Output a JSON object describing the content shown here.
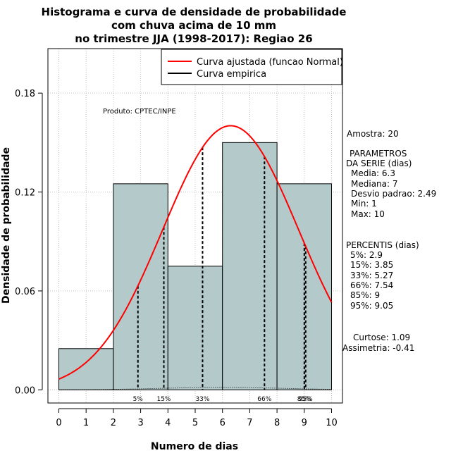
{
  "chart_data": {
    "type": "bar",
    "title": [
      "Histograma e curva de densidade de probabilidade",
      "com chuva acima de 10 mm",
      "no trimestre JJA (1998-2017): Regiao 26"
    ],
    "xlabel": "Numero de dias",
    "ylabel": "Densidade de probabilidade",
    "xlim": [
      -0.4,
      10.4
    ],
    "ylim": [
      -0.008,
      0.207
    ],
    "x_ticks": [
      "0",
      "1",
      "2",
      "3",
      "4",
      "5",
      "6",
      "7",
      "8",
      "9",
      "10"
    ],
    "y_ticks": [
      "0.00",
      "0.06",
      "0.12",
      "0.18"
    ],
    "grid": true,
    "bins": [
      {
        "start": 0,
        "end": 2,
        "density": 0.025
      },
      {
        "start": 2,
        "end": 4,
        "density": 0.125
      },
      {
        "start": 4,
        "end": 6,
        "density": 0.075
      },
      {
        "start": 6,
        "end": 8,
        "density": 0.15
      },
      {
        "start": 8,
        "end": 10,
        "density": 0.125
      }
    ],
    "bar_color": "#b4caca",
    "series": [
      {
        "name": "Curva ajustada (funcao Normal)",
        "color": "#ff0000",
        "mean": 6.3,
        "sd": 2.49
      },
      {
        "name": "Curva empirica",
        "color": "#000000"
      }
    ],
    "legend_position": "top-right",
    "credit": "Produto: CPTEC/INPE",
    "percentiles": [
      {
        "label": "5%",
        "value": 2.9
      },
      {
        "label": "15%",
        "value": 3.85
      },
      {
        "label": "33%",
        "value": 5.27
      },
      {
        "label": "66%",
        "value": 7.54
      },
      {
        "label": "85%",
        "value": 9
      },
      {
        "label": "95%",
        "value": 9.05
      }
    ],
    "stats": {
      "amostra": "Amostra: 20",
      "params_title": [
        "PARAMETROS",
        "DA SERIE (dias)"
      ],
      "params": [
        "Media: 6.3",
        "Mediana: 7",
        "Desvio padrao: 2.49",
        "Min: 1",
        "Max: 10"
      ],
      "percentis_title": "PERCENTIS (dias)",
      "percentis": [
        "5%: 2.9",
        "15%: 3.85",
        "33%: 5.27",
        "66%: 7.54",
        "85%: 9",
        "95%: 9.05"
      ],
      "curtose": "Curtose: 1.09",
      "assimetria": "Assimetria: -0.41"
    }
  }
}
